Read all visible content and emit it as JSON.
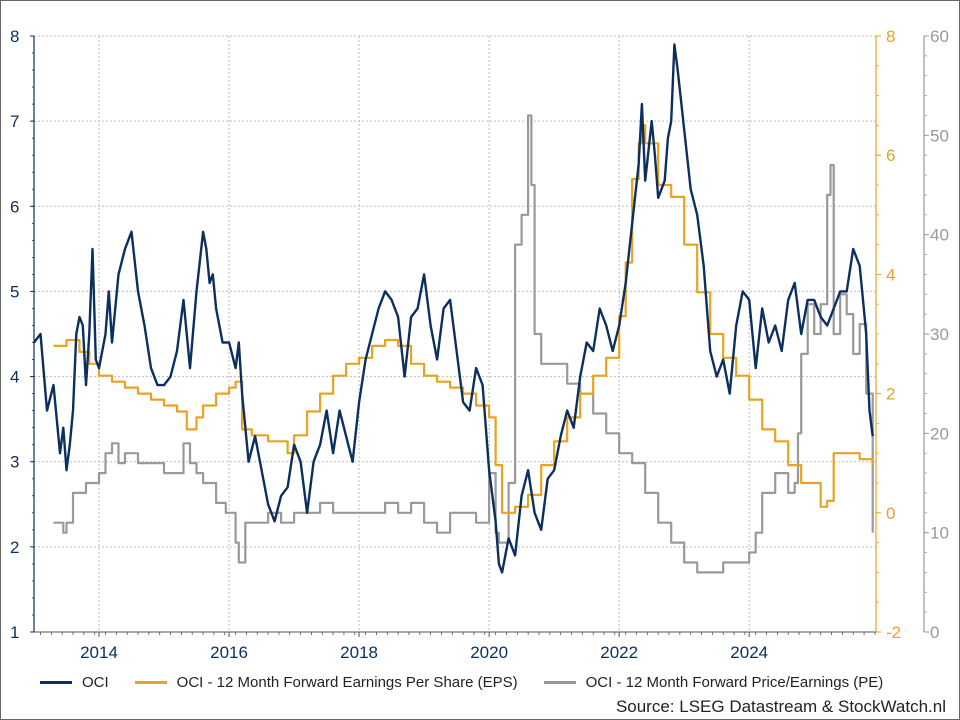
{
  "chart_data": {
    "type": "line",
    "x_axis": {
      "ticks": [
        "2014",
        "2016",
        "2018",
        "2020",
        "2022",
        "2024"
      ],
      "range": [
        2013.0,
        2025.95
      ]
    },
    "y_left": {
      "range": [
        1,
        8
      ],
      "ticks": [
        "1",
        "2",
        "3",
        "4",
        "5",
        "6",
        "7",
        "8"
      ],
      "color": "#0d2f5e"
    },
    "y_right_eps": {
      "range": [
        -2,
        8
      ],
      "ticks": [
        "-2",
        "0",
        "2",
        "4",
        "6",
        "8"
      ],
      "color": "#e8a322"
    },
    "y_right_pe": {
      "range": [
        0,
        60
      ],
      "ticks": [
        "0",
        "10",
        "20",
        "30",
        "40",
        "50",
        "60"
      ],
      "color": "#999999"
    },
    "grid": true,
    "series": [
      {
        "name": "OCI",
        "axis": "left",
        "color": "#0d2f5e",
        "x": [
          2013.0,
          2013.1,
          2013.2,
          2013.3,
          2013.4,
          2013.45,
          2013.5,
          2013.55,
          2013.6,
          2013.65,
          2013.7,
          2013.75,
          2013.8,
          2013.85,
          2013.9,
          2013.95,
          2014.0,
          2014.1,
          2014.15,
          2014.2,
          2014.3,
          2014.4,
          2014.5,
          2014.6,
          2014.7,
          2014.8,
          2014.9,
          2015.0,
          2015.1,
          2015.2,
          2015.3,
          2015.4,
          2015.5,
          2015.6,
          2015.65,
          2015.7,
          2015.75,
          2015.8,
          2015.9,
          2016.0,
          2016.1,
          2016.15,
          2016.2,
          2016.3,
          2016.4,
          2016.5,
          2016.6,
          2016.7,
          2016.8,
          2016.9,
          2017.0,
          2017.1,
          2017.2,
          2017.3,
          2017.4,
          2017.5,
          2017.6,
          2017.7,
          2017.8,
          2017.9,
          2018.0,
          2018.1,
          2018.2,
          2018.3,
          2018.4,
          2018.5,
          2018.6,
          2018.7,
          2018.8,
          2018.9,
          2019.0,
          2019.1,
          2019.2,
          2019.3,
          2019.4,
          2019.5,
          2019.6,
          2019.7,
          2019.8,
          2019.9,
          2020.0,
          2020.1,
          2020.15,
          2020.2,
          2020.3,
          2020.4,
          2020.5,
          2020.6,
          2020.7,
          2020.8,
          2020.9,
          2021.0,
          2021.1,
          2021.2,
          2021.3,
          2021.4,
          2021.5,
          2021.6,
          2021.7,
          2021.8,
          2021.9,
          2022.0,
          2022.1,
          2022.2,
          2022.3,
          2022.35,
          2022.4,
          2022.5,
          2022.55,
          2022.6,
          2022.7,
          2022.75,
          2022.8,
          2022.85,
          2022.9,
          2023.0,
          2023.1,
          2023.2,
          2023.3,
          2023.4,
          2023.5,
          2023.6,
          2023.7,
          2023.8,
          2023.9,
          2024.0,
          2024.1,
          2024.2,
          2024.3,
          2024.4,
          2024.5,
          2024.6,
          2024.7,
          2024.8,
          2024.9,
          2025.0,
          2025.1,
          2025.2,
          2025.3,
          2025.4,
          2025.5,
          2025.6,
          2025.7,
          2025.75,
          2025.8,
          2025.85,
          2025.9
        ],
        "values": [
          4.4,
          4.5,
          3.6,
          3.9,
          3.1,
          3.4,
          2.9,
          3.2,
          3.6,
          4.5,
          4.7,
          4.6,
          3.9,
          4.5,
          5.5,
          4.2,
          4.1,
          4.5,
          5.0,
          4.4,
          5.2,
          5.5,
          5.7,
          5.0,
          4.6,
          4.1,
          3.9,
          3.9,
          4.0,
          4.3,
          4.9,
          4.1,
          5.0,
          5.7,
          5.5,
          5.1,
          5.2,
          4.8,
          4.4,
          4.4,
          4.1,
          4.4,
          3.8,
          3.0,
          3.3,
          2.9,
          2.5,
          2.3,
          2.6,
          2.7,
          3.2,
          3.0,
          2.4,
          3.0,
          3.2,
          3.6,
          3.1,
          3.6,
          3.3,
          3.0,
          3.7,
          4.2,
          4.5,
          4.8,
          5.0,
          4.9,
          4.7,
          4.0,
          4.7,
          4.8,
          5.2,
          4.6,
          4.2,
          4.8,
          4.9,
          4.3,
          3.7,
          3.6,
          4.1,
          3.9,
          2.9,
          2.3,
          1.8,
          1.7,
          2.1,
          1.9,
          2.6,
          2.9,
          2.4,
          2.2,
          2.8,
          2.9,
          3.3,
          3.6,
          3.4,
          4.0,
          4.4,
          4.3,
          4.8,
          4.6,
          4.3,
          4.6,
          5.1,
          5.8,
          6.5,
          7.2,
          6.3,
          7.0,
          6.6,
          6.1,
          6.3,
          6.8,
          7.0,
          7.9,
          7.6,
          6.9,
          6.2,
          5.9,
          5.3,
          4.3,
          4.0,
          4.2,
          3.8,
          4.6,
          5.0,
          4.9,
          4.1,
          4.8,
          4.4,
          4.6,
          4.3,
          4.9,
          5.1,
          4.5,
          4.9,
          4.9,
          4.7,
          4.6,
          4.8,
          5.0,
          5.0,
          5.5,
          5.3,
          4.9,
          4.5,
          3.6,
          3.3
        ]
      },
      {
        "name": "OCI - 12 Month Forward Earnings Per Share (EPS)",
        "axis": "eps",
        "color": "#e8a322",
        "x": [
          2013.3,
          2013.5,
          2013.7,
          2013.85,
          2014.0,
          2014.2,
          2014.4,
          2014.6,
          2014.8,
          2015.0,
          2015.2,
          2015.35,
          2015.5,
          2015.6,
          2015.8,
          2016.0,
          2016.1,
          2016.2,
          2016.35,
          2016.6,
          2016.9,
          2017.0,
          2017.2,
          2017.4,
          2017.6,
          2017.8,
          2018.0,
          2018.2,
          2018.4,
          2018.6,
          2018.8,
          2019.0,
          2019.2,
          2019.4,
          2019.6,
          2019.8,
          2020.0,
          2020.1,
          2020.2,
          2020.4,
          2020.6,
          2020.8,
          2021.0,
          2021.2,
          2021.4,
          2021.6,
          2021.8,
          2022.0,
          2022.1,
          2022.2,
          2022.3,
          2022.35,
          2022.4,
          2022.6,
          2022.8,
          2023.0,
          2023.2,
          2023.4,
          2023.6,
          2023.8,
          2024.0,
          2024.2,
          2024.4,
          2024.6,
          2024.8,
          2025.0,
          2025.1,
          2025.2,
          2025.3,
          2025.5,
          2025.7,
          2025.9
        ],
        "values": [
          2.8,
          2.9,
          2.7,
          2.5,
          2.3,
          2.2,
          2.1,
          2.0,
          1.9,
          1.8,
          1.7,
          1.4,
          1.6,
          1.8,
          2.0,
          2.1,
          2.2,
          1.4,
          1.3,
          1.2,
          1.0,
          1.3,
          1.7,
          2.0,
          2.3,
          2.5,
          2.6,
          2.8,
          2.9,
          2.8,
          2.5,
          2.3,
          2.2,
          2.1,
          2.0,
          1.8,
          1.6,
          0.8,
          0.0,
          0.1,
          0.3,
          0.8,
          1.2,
          1.6,
          2.0,
          2.3,
          2.6,
          3.3,
          4.2,
          5.6,
          6.2,
          6.5,
          6.2,
          5.5,
          5.3,
          4.5,
          3.7,
          3.0,
          2.6,
          2.3,
          1.9,
          1.4,
          1.2,
          0.8,
          0.5,
          0.5,
          0.1,
          0.2,
          1.0,
          1.0,
          0.9,
          0.8
        ]
      },
      {
        "name": "OCI - 12 Month Forward Price/Earnings (PE)",
        "axis": "pe",
        "color": "#999999",
        "x": [
          2013.3,
          2013.45,
          2013.5,
          2013.6,
          2013.8,
          2014.0,
          2014.1,
          2014.2,
          2014.3,
          2014.4,
          2014.6,
          2014.8,
          2015.0,
          2015.2,
          2015.3,
          2015.4,
          2015.5,
          2015.6,
          2015.8,
          2015.95,
          2016.1,
          2016.15,
          2016.25,
          2016.4,
          2016.6,
          2016.8,
          2017.0,
          2017.2,
          2017.4,
          2017.6,
          2017.8,
          2018.0,
          2018.2,
          2018.4,
          2018.6,
          2018.8,
          2019.0,
          2019.2,
          2019.4,
          2019.6,
          2019.8,
          2020.0,
          2020.1,
          2020.15,
          2020.3,
          2020.4,
          2020.5,
          2020.6,
          2020.65,
          2020.7,
          2020.8,
          2021.0,
          2021.2,
          2021.4,
          2021.6,
          2021.8,
          2022.0,
          2022.2,
          2022.4,
          2022.6,
          2022.8,
          2023.0,
          2023.2,
          2023.4,
          2023.6,
          2023.8,
          2024.0,
          2024.1,
          2024.2,
          2024.4,
          2024.6,
          2024.7,
          2024.75,
          2024.8,
          2024.9,
          2025.0,
          2025.1,
          2025.2,
          2025.25,
          2025.3,
          2025.4,
          2025.5,
          2025.6,
          2025.7,
          2025.8,
          2025.9
        ],
        "values": [
          11,
          10,
          11,
          14,
          15,
          16,
          18,
          19,
          17,
          18,
          17,
          17,
          16,
          16,
          19,
          17,
          16,
          15,
          13,
          12,
          9,
          7,
          11,
          11,
          12,
          11,
          12,
          12,
          13,
          12,
          12,
          12,
          12,
          13,
          12,
          13,
          11,
          10,
          12,
          12,
          11,
          16,
          10,
          9,
          15,
          39,
          42,
          52,
          45,
          30,
          27,
          27,
          25,
          24,
          22,
          20,
          18,
          17,
          14,
          11,
          9,
          7,
          6,
          6,
          7,
          7,
          8,
          10,
          14,
          16,
          14,
          15,
          20,
          28,
          33,
          30,
          33,
          44,
          47,
          30,
          34,
          32,
          28,
          31,
          24,
          10
        ]
      }
    ]
  },
  "legend": [
    {
      "label": "OCI",
      "color": "#0d2f5e"
    },
    {
      "label": "OCI - 12 Month Forward Earnings Per Share (EPS)",
      "color": "#e8a322"
    },
    {
      "label": "OCI - 12 Month Forward Price/Earnings (PE)",
      "color": "#999999"
    }
  ],
  "source": "Source: LSEG Datastream & StockWatch.nl"
}
